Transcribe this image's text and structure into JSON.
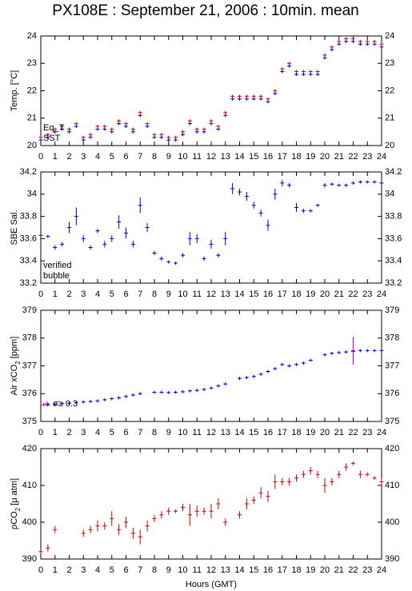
{
  "chart_data": [
    {
      "type": "scatter",
      "title": "PX108E : September 21, 2006 : 10min. mean",
      "ylabel": [
        "Temp. [°C]"
      ],
      "legend": "lower left",
      "xlim": [
        0,
        24
      ],
      "xticks": [
        0,
        1,
        2,
        3,
        4,
        5,
        6,
        7,
        8,
        9,
        10,
        11,
        12,
        13,
        14,
        15,
        16,
        17,
        18,
        19,
        20,
        21,
        22,
        23,
        24
      ],
      "ylim": [
        20,
        24
      ],
      "yticks": [
        20,
        21,
        22,
        23,
        24
      ],
      "x": [
        0,
        0.5,
        1,
        1.5,
        2,
        2.5,
        3,
        3.5,
        4,
        4.5,
        5,
        5.5,
        6,
        6.5,
        7,
        7.5,
        8,
        8.5,
        9,
        9.5,
        10,
        10.5,
        11,
        11.5,
        12,
        12.5,
        13,
        13.5,
        14,
        14.5,
        15,
        15.5,
        16,
        16.5,
        17,
        17.5,
        18,
        18.5,
        19,
        19.5,
        20,
        20.5,
        21,
        21.5,
        22,
        22.5,
        23,
        23.5,
        24
      ],
      "series": [
        {
          "name": "Eq_T",
          "color": "#d00000",
          "values": [
            20.3,
            20.4,
            20.6,
            20.7,
            20.6,
            20.8,
            20.3,
            20.4,
            20.7,
            20.7,
            20.6,
            20.9,
            20.8,
            20.6,
            21.2,
            20.8,
            20.4,
            20.4,
            20.3,
            20.3,
            20.5,
            20.9,
            20.6,
            20.6,
            20.9,
            20.7,
            21.2,
            21.8,
            21.8,
            21.8,
            21.8,
            21.8,
            21.7,
            22.0,
            22.8,
            23.0,
            22.7,
            22.7,
            22.7,
            22.7,
            23.3,
            23.6,
            23.8,
            23.9,
            23.9,
            23.8,
            23.8,
            23.8,
            23.7
          ]
        },
        {
          "name": "SST",
          "color": "#0000c8",
          "values": [
            20.2,
            20.3,
            20.5,
            20.6,
            20.5,
            20.7,
            20.2,
            20.3,
            20.6,
            20.6,
            20.5,
            20.8,
            20.7,
            20.5,
            21.1,
            20.7,
            20.3,
            20.3,
            20.2,
            20.2,
            20.4,
            20.8,
            20.5,
            20.5,
            20.8,
            20.6,
            21.1,
            21.7,
            21.7,
            21.7,
            21.7,
            21.7,
            21.6,
            21.9,
            22.7,
            22.9,
            22.6,
            22.6,
            22.6,
            22.6,
            23.2,
            23.5,
            23.7,
            23.8,
            23.8,
            23.7,
            23.7,
            23.7,
            23.6
          ]
        }
      ]
    },
    {
      "type": "scatter",
      "ylabel": [
        "SBE Sal."
      ],
      "legend": "lower left",
      "xlim": [
        0,
        24
      ],
      "xticks": [
        0,
        1,
        2,
        3,
        4,
        5,
        6,
        7,
        8,
        9,
        10,
        11,
        12,
        13,
        14,
        15,
        16,
        17,
        18,
        19,
        20,
        21,
        22,
        23,
        24
      ],
      "ylim": [
        33.2,
        34.2
      ],
      "yticks": [
        33.2,
        33.4,
        33.6,
        33.8,
        34,
        34.2
      ],
      "x": [
        0,
        0.5,
        1,
        1.5,
        2,
        2.5,
        3,
        3.5,
        4,
        4.5,
        5,
        5.5,
        6,
        6.5,
        7,
        7.5,
        8,
        8.5,
        9,
        9.5,
        10,
        10.5,
        11,
        11.5,
        12,
        12.5,
        13,
        13.5,
        14,
        14.5,
        15,
        15.5,
        16,
        16.5,
        17,
        17.5,
        18,
        18.5,
        19,
        19.5,
        20,
        20.5,
        21,
        21.5,
        22,
        22.5,
        23,
        23.5,
        24
      ],
      "series": [
        {
          "name": "verified",
          "color": "#0000c8",
          "values": [
            33.63,
            33.62,
            33.52,
            33.55,
            33.7,
            33.8,
            33.6,
            33.52,
            33.67,
            33.55,
            33.6,
            33.75,
            33.65,
            33.55,
            33.9,
            33.7,
            33.47,
            33.42,
            33.39,
            33.38,
            33.45,
            33.6,
            33.6,
            33.42,
            33.55,
            33.45,
            33.6,
            34.05,
            34.02,
            33.98,
            33.9,
            33.83,
            33.72,
            34.0,
            34.1,
            34.08,
            33.88,
            33.85,
            33.85,
            33.9,
            34.08,
            34.09,
            34.08,
            34.08,
            34.1,
            34.11,
            34.11,
            34.11,
            34.1
          ],
          "errors": [
            0.01,
            0.01,
            0.02,
            0.02,
            0.05,
            0.08,
            0.03,
            0.02,
            0.02,
            0.03,
            0.03,
            0.06,
            0.05,
            0.03,
            0.07,
            0.04,
            0.02,
            0.02,
            0.01,
            0.01,
            0.02,
            0.06,
            0.04,
            0.02,
            0.04,
            0.02,
            0.06,
            0.05,
            0.03,
            0.04,
            0.03,
            0.03,
            0.05,
            0.05,
            0.03,
            0.02,
            0.04,
            0.02,
            0.01,
            0.01,
            0.02,
            0.01,
            0.01,
            0.01,
            0.01,
            0.01,
            0.01,
            0.01,
            0.01
          ]
        },
        {
          "name": "bubble",
          "color": "#c000c0",
          "x": [],
          "values": [],
          "errors": []
        }
      ]
    },
    {
      "type": "scatter",
      "ylabel": [
        "Air xCO",
        "2",
        " [ppm]"
      ],
      "legend": "lower left",
      "xlim": [
        0,
        24
      ],
      "xticks": [
        0,
        1,
        2,
        3,
        4,
        5,
        6,
        7,
        8,
        9,
        10,
        11,
        12,
        13,
        14,
        15,
        16,
        17,
        18,
        19,
        20,
        21,
        22,
        23,
        24
      ],
      "ylim": [
        375,
        379
      ],
      "yticks": [
        375,
        376,
        377,
        378,
        379
      ],
      "x": [
        0,
        0.5,
        1,
        1.5,
        2,
        2.5,
        3,
        3.5,
        4,
        4.5,
        5,
        5.5,
        6,
        6.5,
        7,
        7.5,
        8,
        8.5,
        9,
        9.5,
        10,
        10.5,
        11,
        11.5,
        12,
        12.5,
        13,
        13.5,
        14,
        14.5,
        15,
        15.5,
        16,
        16.5,
        17,
        17.5,
        18,
        18.5,
        19,
        19.5,
        20,
        20.5,
        21,
        21.5,
        22,
        22.5,
        23,
        23.5,
        24
      ],
      "series": [
        {
          "name": "xCO2",
          "color": "#0000c8",
          "values": [
            null,
            375.6,
            375.62,
            375.64,
            375.66,
            375.68,
            375.7,
            375.72,
            375.74,
            375.78,
            375.82,
            375.85,
            375.9,
            375.95,
            376.0,
            null,
            376.05,
            376.05,
            376.04,
            376.05,
            376.07,
            376.1,
            376.12,
            376.15,
            376.2,
            376.28,
            376.35,
            null,
            376.55,
            376.58,
            376.62,
            376.7,
            376.8,
            376.9,
            377.05,
            377.0,
            377.05,
            377.1,
            377.2,
            null,
            377.4,
            377.45,
            377.48,
            377.5,
            377.52,
            377.55,
            377.55,
            377.55,
            377.55
          ]
        },
        {
          "name": "σ≥ 0.3",
          "color": "#c000c0",
          "x": [
            0.2,
            22
          ],
          "values": [
            375.6,
            377.55
          ],
          "errors": [
            0.05,
            0.5
          ]
        }
      ]
    },
    {
      "type": "scatter",
      "ylabel": [
        "ρCO",
        "2",
        " [μ atm]"
      ],
      "xlabel": "Hours (GMT)",
      "xlim": [
        0,
        24
      ],
      "xticks": [
        0,
        1,
        2,
        3,
        4,
        5,
        6,
        7,
        8,
        9,
        10,
        11,
        12,
        13,
        14,
        15,
        16,
        17,
        18,
        19,
        20,
        21,
        22,
        23,
        24
      ],
      "ylim": [
        390,
        420
      ],
      "yticks": [
        390,
        400,
        410,
        420
      ],
      "x": [
        0,
        0.5,
        1,
        1.5,
        2,
        2.5,
        3,
        3.5,
        4,
        4.5,
        5,
        5.5,
        6,
        6.5,
        7,
        7.5,
        8,
        8.5,
        9,
        9.5,
        10,
        10.5,
        11,
        11.5,
        12,
        12.5,
        13,
        13.5,
        14,
        14.5,
        15,
        15.5,
        16,
        16.5,
        17,
        17.5,
        18,
        18.5,
        19,
        19.5,
        20,
        20.5,
        21,
        21.5,
        22,
        22.5,
        23,
        23.5,
        24
      ],
      "series": [
        {
          "name": "pCO2",
          "color": "#d00000",
          "values": [
            392,
            393,
            398,
            null,
            null,
            null,
            397,
            398,
            399,
            399,
            401,
            398,
            400,
            397,
            396,
            399,
            401,
            402,
            403,
            403,
            404,
            402,
            403,
            403,
            403,
            405,
            400,
            null,
            402,
            405,
            406,
            408,
            407,
            411,
            411,
            411,
            412,
            413,
            414,
            413,
            410,
            411,
            413,
            415,
            416,
            413,
            413,
            412,
            411
          ],
          "errors": [
            0.5,
            1,
            1,
            null,
            null,
            null,
            1,
            1,
            1.5,
            1,
            2,
            1.5,
            1.5,
            1.5,
            2,
            1.5,
            1,
            1,
            1,
            0.5,
            1,
            3,
            1.5,
            1,
            2,
            1.5,
            1,
            null,
            1,
            1.5,
            1,
            1.5,
            1.5,
            2,
            1,
            1,
            1,
            1,
            1,
            1,
            2,
            1,
            1,
            1,
            0.5,
            1,
            0.5,
            0.5,
            1
          ]
        }
      ]
    }
  ]
}
